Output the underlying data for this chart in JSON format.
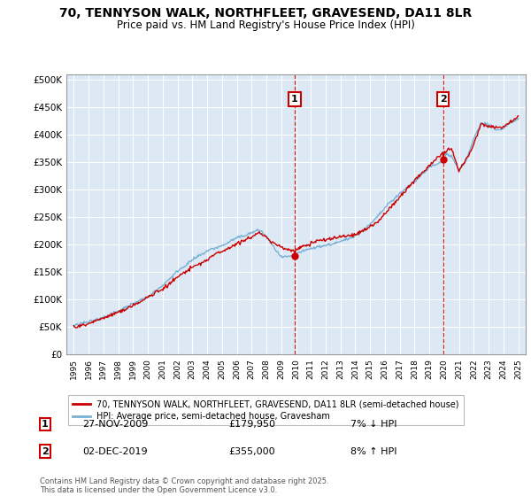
{
  "title_line1": "70, TENNYSON WALK, NORTHFLEET, GRAVESEND, DA11 8LR",
  "title_line2": "Price paid vs. HM Land Registry's House Price Index (HPI)",
  "background_color": "#ffffff",
  "plot_bg_color": "#dce9f5",
  "grid_color": "#ffffff",
  "red_line_color": "#cc0000",
  "blue_line_color": "#7ab0d4",
  "marker1_x": 2009.91,
  "marker2_x": 2019.92,
  "marker1_label": "1",
  "marker2_label": "2",
  "marker1_price": 179950,
  "marker2_price": 355000,
  "marker1_date": "27-NOV-2009",
  "marker2_date": "02-DEC-2019",
  "marker1_hpi": "7% ↓ HPI",
  "marker2_hpi": "8% ↑ HPI",
  "legend_label_red": "70, TENNYSON WALK, NORTHFLEET, GRAVESEND, DA11 8LR (semi-detached house)",
  "legend_label_blue": "HPI: Average price, semi-detached house, Gravesham",
  "footer": "Contains HM Land Registry data © Crown copyright and database right 2025.\nThis data is licensed under the Open Government Licence v3.0.",
  "ylim": [
    0,
    510000
  ],
  "xlim": [
    1994.5,
    2025.5
  ],
  "yticks": [
    0,
    50000,
    100000,
    150000,
    200000,
    250000,
    300000,
    350000,
    400000,
    450000,
    500000
  ],
  "ytick_labels": [
    "£0",
    "£50K",
    "£100K",
    "£150K",
    "£200K",
    "£250K",
    "£300K",
    "£350K",
    "£400K",
    "£450K",
    "£500K"
  ]
}
